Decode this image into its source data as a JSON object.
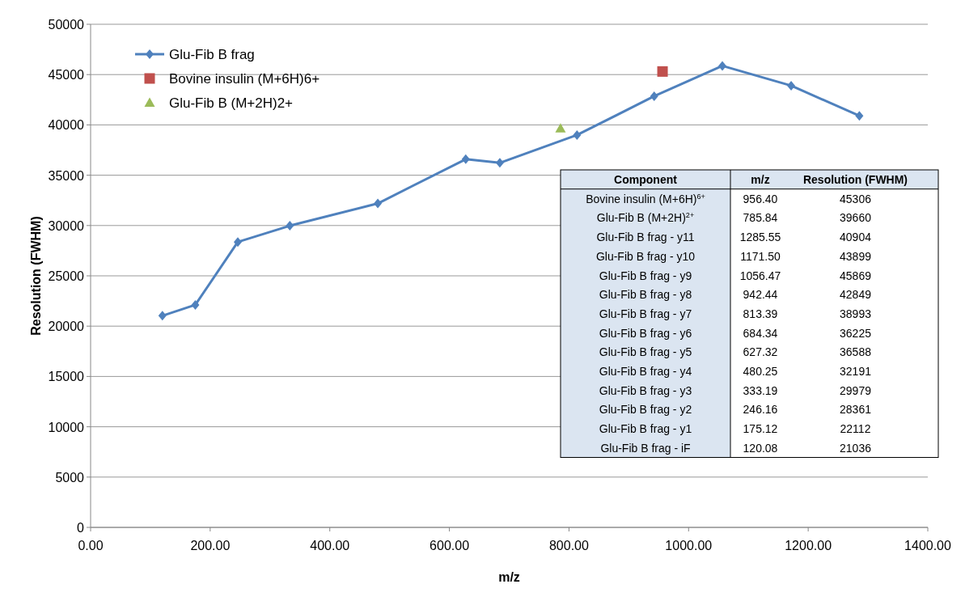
{
  "chart_data": [
    {
      "type": "line",
      "xlabel": "m/z",
      "ylabel": "Resolution (FWHM)",
      "xlim": [
        0,
        1400
      ],
      "xticks": [
        {
          "value": 0,
          "label": "0.00"
        },
        {
          "value": 200,
          "label": "200.00"
        },
        {
          "value": 400,
          "label": "400.00"
        },
        {
          "value": 600,
          "label": "600.00"
        },
        {
          "value": 800,
          "label": "800.00"
        },
        {
          "value": 1000,
          "label": "1000.00"
        },
        {
          "value": 1200,
          "label": "1200.00"
        },
        {
          "value": 1400,
          "label": "1400.00"
        }
      ],
      "ylim": [
        0,
        50000
      ],
      "yticks": [
        0,
        5000,
        10000,
        15000,
        20000,
        25000,
        30000,
        35000,
        40000,
        45000,
        50000
      ],
      "grid": "y",
      "legend": "top left",
      "series": [
        {
          "name": "Glu-Fib B frag",
          "color": "#4f81bd",
          "marker": "diamond",
          "x": [
            120.08,
            175.12,
            246.16,
            333.19,
            480.25,
            627.32,
            684.34,
            813.39,
            942.44,
            1056.47,
            1171.5,
            1285.55
          ],
          "values": [
            21036,
            22112,
            28361,
            29979,
            32191,
            36588,
            36225,
            38993,
            42849,
            45869,
            43899,
            40904
          ]
        },
        {
          "name": "Bovine insulin (M+6H)6+",
          "color": "#c0504d",
          "type": "scatter",
          "marker": "square",
          "x": [
            956.4
          ],
          "values": [
            45306
          ]
        },
        {
          "name": "Glu-Fib B (M+2H)2+",
          "color": "#9bbb59",
          "type": "scatter",
          "marker": "triangle",
          "x": [
            785.84
          ],
          "values": [
            39660
          ]
        }
      ]
    },
    {
      "type": "other",
      "annotations": [
        "Component",
        "m/z",
        "Resolution (FWHM)",
        "Bovine insulin (M+6H)$^{6+}$",
        "956.40",
        "45306",
        "Glu-Fib B (M+2H)$^{2+}$",
        "785.84",
        "39660",
        "Glu-Fib B frag - y11",
        "1285.55",
        "40904",
        "Glu-Fib B frag - y10",
        "1171.50",
        "43899",
        "Glu-Fib B frag - y9",
        "1056.47",
        "45869",
        "Glu-Fib B frag - y8",
        "942.44",
        "42849",
        "Glu-Fib B frag - y7",
        "813.39",
        "38993",
        "Glu-Fib B frag - y6",
        "684.34",
        "36225",
        "Glu-Fib B frag - y5",
        "627.32",
        "36588",
        "Glu-Fib B frag - y4",
        "480.25",
        "32191",
        "Glu-Fib B frag - y3",
        "333.19",
        "29979",
        "Glu-Fib B frag - y2",
        "246.16",
        "28361",
        "Glu-Fib B frag - y1",
        "175.12",
        "22112",
        "Glu-Fib B frag - iF",
        "120.08",
        "21036"
      ]
    }
  ]
}
